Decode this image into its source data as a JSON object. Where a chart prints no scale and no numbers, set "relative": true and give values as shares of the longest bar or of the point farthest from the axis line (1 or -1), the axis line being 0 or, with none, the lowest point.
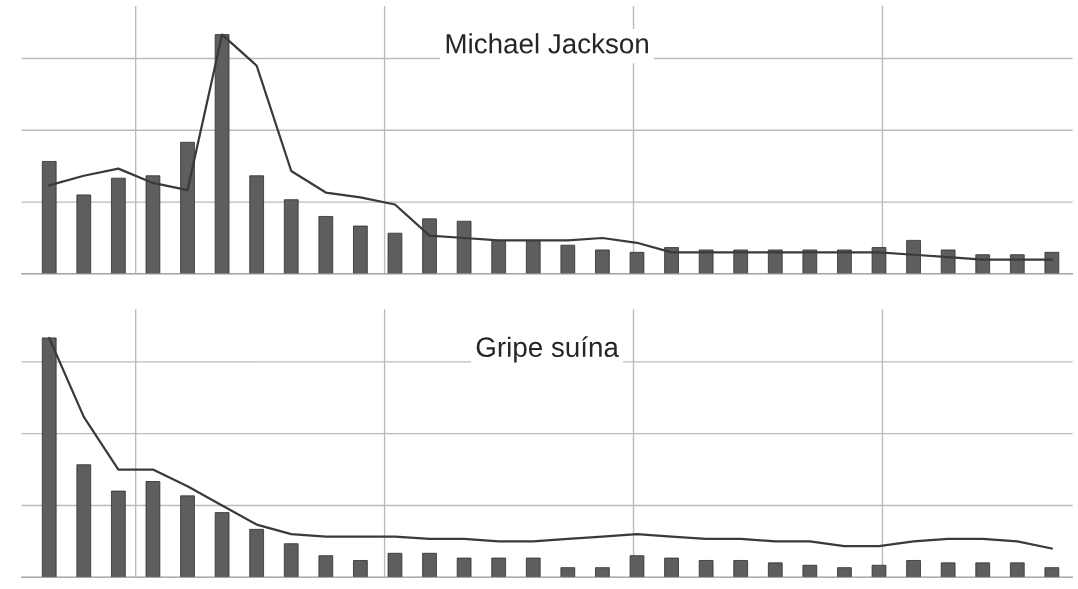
{
  "chart_data": [
    {
      "type": "bar",
      "title": "Michael Jackson",
      "relative": true,
      "grid": true,
      "color": "#5e5e5e",
      "categories": [
        null,
        null,
        null,
        null,
        null,
        null,
        null,
        null,
        null,
        null,
        null,
        null,
        null,
        null,
        null,
        null,
        null,
        null,
        null,
        null,
        null,
        null,
        null,
        null,
        null,
        null,
        null,
        null,
        null,
        null
      ],
      "values": [
        0.47,
        0.33,
        0.4,
        0.41,
        0.55,
        1.0,
        0.41,
        0.31,
        0.24,
        0.2,
        0.17,
        0.23,
        0.22,
        0.14,
        0.14,
        0.12,
        0.1,
        0.09,
        0.11,
        0.1,
        0.1,
        0.1,
        0.1,
        0.1,
        0.11,
        0.14,
        0.1,
        0.08,
        0.08,
        0.09
      ]
    },
    {
      "type": "line",
      "relative": true,
      "color": "#3a3a3a",
      "categories": [
        null,
        null,
        null,
        null,
        null,
        null,
        null,
        null,
        null,
        null,
        null,
        null,
        null,
        null,
        null,
        null,
        null,
        null,
        null,
        null,
        null,
        null,
        null,
        null,
        null,
        null,
        null,
        null,
        null,
        null
      ],
      "values": [
        0.37,
        0.41,
        0.44,
        0.38,
        0.35,
        1.0,
        0.87,
        0.43,
        0.34,
        0.32,
        0.29,
        0.16,
        0.15,
        0.14,
        0.14,
        0.14,
        0.15,
        0.13,
        0.09,
        0.09,
        0.09,
        0.09,
        0.09,
        0.09,
        0.09,
        0.08,
        0.07,
        0.06,
        0.06,
        0.06
      ]
    },
    {
      "type": "bar",
      "title": "Gripe suína",
      "relative": true,
      "grid": true,
      "color": "#5e5e5e",
      "categories": [
        null,
        null,
        null,
        null,
        null,
        null,
        null,
        null,
        null,
        null,
        null,
        null,
        null,
        null,
        null,
        null,
        null,
        null,
        null,
        null,
        null,
        null,
        null,
        null,
        null,
        null,
        null,
        null,
        null,
        null
      ],
      "values": [
        1.0,
        0.47,
        0.36,
        0.4,
        0.34,
        0.27,
        0.2,
        0.14,
        0.09,
        0.07,
        0.1,
        0.1,
        0.08,
        0.08,
        0.08,
        0.04,
        0.04,
        0.09,
        0.08,
        0.07,
        0.07,
        0.06,
        0.05,
        0.04,
        0.05,
        0.07,
        0.06,
        0.06,
        0.06,
        0.04
      ]
    },
    {
      "type": "line",
      "relative": true,
      "color": "#3a3a3a",
      "categories": [
        null,
        null,
        null,
        null,
        null,
        null,
        null,
        null,
        null,
        null,
        null,
        null,
        null,
        null,
        null,
        null,
        null,
        null,
        null,
        null,
        null,
        null,
        null,
        null,
        null,
        null,
        null,
        null,
        null,
        null
      ],
      "values": [
        1.0,
        0.67,
        0.45,
        0.45,
        0.38,
        0.3,
        0.22,
        0.18,
        0.17,
        0.17,
        0.17,
        0.16,
        0.16,
        0.15,
        0.15,
        0.16,
        0.17,
        0.18,
        0.17,
        0.16,
        0.16,
        0.15,
        0.15,
        0.13,
        0.13,
        0.15,
        0.16,
        0.16,
        0.15,
        0.12
      ]
    }
  ]
}
